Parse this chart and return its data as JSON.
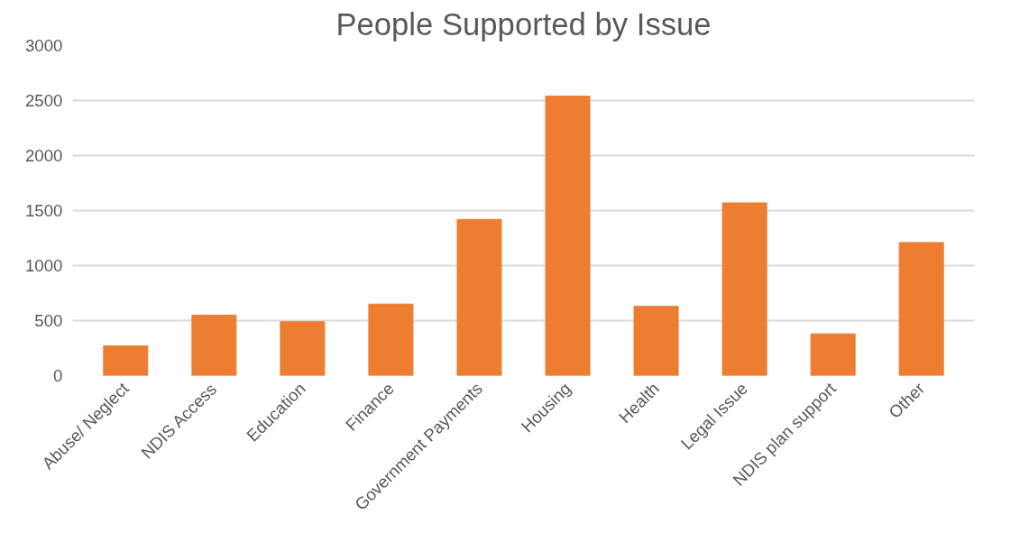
{
  "chart_data": {
    "type": "bar",
    "title": "People Supported by Issue",
    "categories": [
      "Abuse/ Neglect",
      "NDIS Access",
      "Education",
      "Finance",
      "Government Payments",
      "Housing",
      "Health",
      "Legal Issue",
      "NDIS plan support",
      "Other"
    ],
    "values": [
      270,
      550,
      490,
      650,
      1420,
      2540,
      630,
      1570,
      380,
      1210
    ],
    "color": "#ed7d31",
    "ylim": [
      0,
      3000
    ],
    "yticks": [
      0,
      500,
      1000,
      1500,
      2000,
      2500,
      3000
    ],
    "grid": "y"
  }
}
